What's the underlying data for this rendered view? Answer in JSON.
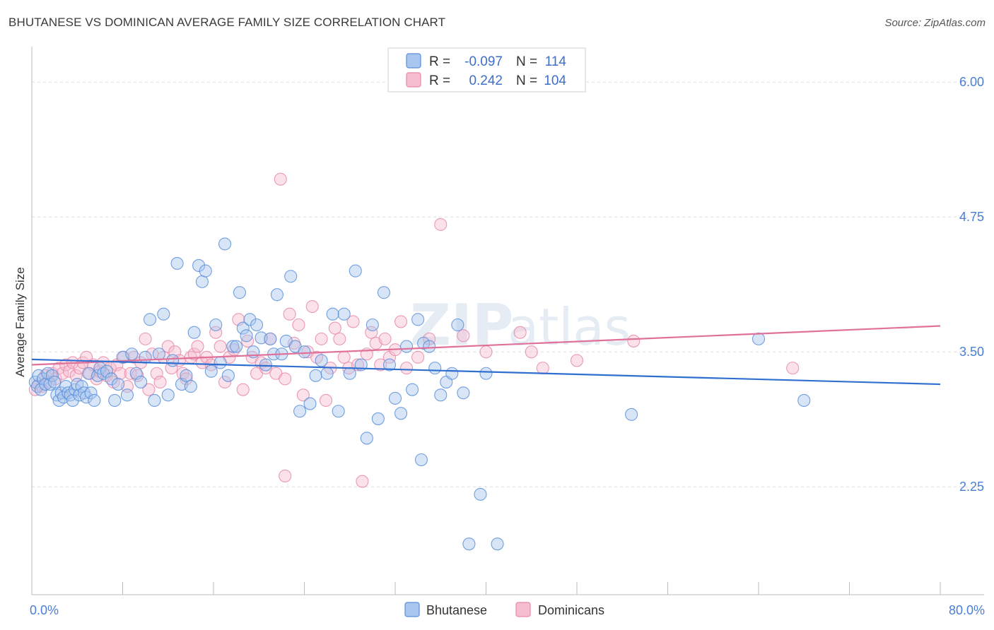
{
  "title": "BHUTANESE VS DOMINICAN AVERAGE FAMILY SIZE CORRELATION CHART",
  "source": "Source: ZipAtlas.com",
  "watermark": {
    "zip": "ZIP",
    "atlas": "atlas"
  },
  "legend": {
    "rows": [
      {
        "r_label": "R =",
        "r_value": "-0.097",
        "n_label": "N =",
        "n_value": "114"
      },
      {
        "r_label": "R =",
        "r_value": "0.242",
        "n_label": "N =",
        "n_value": "104"
      }
    ]
  },
  "colors": {
    "blue": "#5b8fd9",
    "blue_fill": "#a9c6ee",
    "blue_line": "#2f6fd0",
    "pink": "#e789a8",
    "pink_fill": "#f6bcd0",
    "pink_line": "#e0719a",
    "grid": "#dddddd",
    "tick_text": "#4a7fd4"
  },
  "chart_data": {
    "type": "scatter",
    "title": "BHUTANESE VS DOMINICAN AVERAGE FAMILY SIZE CORRELATION CHART",
    "xlabel": "",
    "ylabel": "Average Family Size",
    "xlim": [
      0,
      80
    ],
    "ylim": [
      1.25,
      6.25
    ],
    "x_tick_labels": [
      "0.0%",
      "80.0%"
    ],
    "x_ticks": [
      0,
      80
    ],
    "y_ticks": [
      2.25,
      3.5,
      4.75,
      6.0
    ],
    "y_tick_labels": [
      "2.25",
      "3.50",
      "4.75",
      "6.00"
    ],
    "grid": true,
    "legend_position": "top-center",
    "series": [
      {
        "name": "Bhutanese",
        "r": -0.097,
        "n": 114,
        "trend": {
          "x": [
            0,
            80
          ],
          "y": [
            3.43,
            3.2
          ]
        },
        "points": [
          [
            0.3,
            3.22
          ],
          [
            0.5,
            3.18
          ],
          [
            0.6,
            3.28
          ],
          [
            0.8,
            3.15
          ],
          [
            1.0,
            3.25
          ],
          [
            1.2,
            3.2
          ],
          [
            1.4,
            3.3
          ],
          [
            1.6,
            3.2
          ],
          [
            1.8,
            3.28
          ],
          [
            2.0,
            3.22
          ],
          [
            2.2,
            3.1
          ],
          [
            2.4,
            3.05
          ],
          [
            2.6,
            3.12
          ],
          [
            2.8,
            3.08
          ],
          [
            3.0,
            3.18
          ],
          [
            3.2,
            3.12
          ],
          [
            3.4,
            3.1
          ],
          [
            3.6,
            3.05
          ],
          [
            3.8,
            3.15
          ],
          [
            4.0,
            3.2
          ],
          [
            4.2,
            3.1
          ],
          [
            4.4,
            3.18
          ],
          [
            4.6,
            3.12
          ],
          [
            4.8,
            3.08
          ],
          [
            5.0,
            3.3
          ],
          [
            5.2,
            3.12
          ],
          [
            5.5,
            3.05
          ],
          [
            5.8,
            3.28
          ],
          [
            6.0,
            3.35
          ],
          [
            6.3,
            3.3
          ],
          [
            6.6,
            3.32
          ],
          [
            7.0,
            3.25
          ],
          [
            7.3,
            3.05
          ],
          [
            7.6,
            3.2
          ],
          [
            8.0,
            3.45
          ],
          [
            8.4,
            3.1
          ],
          [
            8.8,
            3.48
          ],
          [
            9.2,
            3.3
          ],
          [
            9.6,
            3.22
          ],
          [
            10.0,
            3.45
          ],
          [
            10.4,
            3.8
          ],
          [
            10.8,
            3.05
          ],
          [
            11.2,
            3.48
          ],
          [
            11.6,
            3.85
          ],
          [
            12.0,
            3.1
          ],
          [
            12.4,
            3.42
          ],
          [
            12.8,
            4.32
          ],
          [
            13.2,
            3.2
          ],
          [
            13.6,
            3.28
          ],
          [
            14.0,
            3.18
          ],
          [
            14.3,
            3.68
          ],
          [
            14.7,
            4.3
          ],
          [
            15.0,
            4.15
          ],
          [
            15.3,
            4.25
          ],
          [
            15.8,
            3.32
          ],
          [
            16.2,
            3.75
          ],
          [
            16.6,
            3.4
          ],
          [
            17.0,
            4.5
          ],
          [
            17.3,
            3.28
          ],
          [
            17.7,
            3.55
          ],
          [
            18.0,
            3.55
          ],
          [
            18.3,
            4.05
          ],
          [
            18.6,
            3.72
          ],
          [
            18.9,
            3.65
          ],
          [
            19.2,
            3.8
          ],
          [
            19.5,
            3.5
          ],
          [
            19.8,
            3.75
          ],
          [
            20.2,
            3.63
          ],
          [
            20.6,
            3.38
          ],
          [
            21.0,
            3.62
          ],
          [
            21.3,
            3.48
          ],
          [
            21.6,
            4.03
          ],
          [
            22.0,
            3.48
          ],
          [
            22.4,
            3.6
          ],
          [
            22.8,
            4.2
          ],
          [
            23.2,
            3.55
          ],
          [
            23.6,
            2.95
          ],
          [
            24.0,
            3.5
          ],
          [
            24.5,
            3.02
          ],
          [
            25.0,
            3.28
          ],
          [
            25.5,
            3.42
          ],
          [
            26.0,
            3.3
          ],
          [
            26.5,
            3.85
          ],
          [
            27.0,
            2.95
          ],
          [
            27.5,
            3.85
          ],
          [
            28.0,
            3.3
          ],
          [
            28.5,
            4.25
          ],
          [
            29.0,
            3.38
          ],
          [
            29.5,
            2.7
          ],
          [
            30.0,
            3.75
          ],
          [
            30.5,
            2.88
          ],
          [
            31.0,
            4.05
          ],
          [
            31.5,
            3.38
          ],
          [
            32.0,
            3.07
          ],
          [
            32.5,
            2.93
          ],
          [
            33.0,
            3.55
          ],
          [
            33.5,
            3.15
          ],
          [
            34.0,
            3.8
          ],
          [
            34.5,
            3.58
          ],
          [
            35.0,
            3.55
          ],
          [
            35.5,
            3.35
          ],
          [
            36.0,
            3.1
          ],
          [
            36.5,
            3.22
          ],
          [
            37.0,
            3.3
          ],
          [
            37.5,
            3.75
          ],
          [
            38.0,
            3.12
          ],
          [
            38.5,
            1.72
          ],
          [
            39.5,
            2.18
          ],
          [
            40.0,
            3.3
          ],
          [
            41.0,
            1.72
          ],
          [
            52.8,
            2.92
          ],
          [
            64.0,
            3.62
          ],
          [
            68.0,
            3.05
          ],
          [
            34.3,
            2.5
          ]
        ]
      },
      {
        "name": "Dominicans",
        "r": 0.242,
        "n": 104,
        "trend": {
          "x": [
            0,
            80
          ],
          "y": [
            3.38,
            3.74
          ]
        },
        "points": [
          [
            0.3,
            3.15
          ],
          [
            0.6,
            3.2
          ],
          [
            0.9,
            3.18
          ],
          [
            1.2,
            3.28
          ],
          [
            1.5,
            3.22
          ],
          [
            1.8,
            3.3
          ],
          [
            2.1,
            3.25
          ],
          [
            2.4,
            3.35
          ],
          [
            2.7,
            3.3
          ],
          [
            3.0,
            3.38
          ],
          [
            3.3,
            3.32
          ],
          [
            3.6,
            3.4
          ],
          [
            3.9,
            3.28
          ],
          [
            4.2,
            3.35
          ],
          [
            4.5,
            3.4
          ],
          [
            4.8,
            3.45
          ],
          [
            5.1,
            3.3
          ],
          [
            5.4,
            3.38
          ],
          [
            5.7,
            3.25
          ],
          [
            6.0,
            3.32
          ],
          [
            6.3,
            3.4
          ],
          [
            6.6,
            3.28
          ],
          [
            6.9,
            3.35
          ],
          [
            7.2,
            3.22
          ],
          [
            7.5,
            3.38
          ],
          [
            7.8,
            3.3
          ],
          [
            8.1,
            3.45
          ],
          [
            8.4,
            3.18
          ],
          [
            8.7,
            3.3
          ],
          [
            9.0,
            3.45
          ],
          [
            9.3,
            3.28
          ],
          [
            9.6,
            3.4
          ],
          [
            10.0,
            3.62
          ],
          [
            10.3,
            3.15
          ],
          [
            10.6,
            3.48
          ],
          [
            11.0,
            3.3
          ],
          [
            11.3,
            3.22
          ],
          [
            11.6,
            3.45
          ],
          [
            12.0,
            3.55
          ],
          [
            12.3,
            3.35
          ],
          [
            12.6,
            3.5
          ],
          [
            13.0,
            3.42
          ],
          [
            13.3,
            3.3
          ],
          [
            13.6,
            3.25
          ],
          [
            14.0,
            3.45
          ],
          [
            14.3,
            3.48
          ],
          [
            14.6,
            3.55
          ],
          [
            15.0,
            3.4
          ],
          [
            15.4,
            3.45
          ],
          [
            15.8,
            3.38
          ],
          [
            16.2,
            3.68
          ],
          [
            16.6,
            3.55
          ],
          [
            17.0,
            3.22
          ],
          [
            17.4,
            3.45
          ],
          [
            17.8,
            3.52
          ],
          [
            18.2,
            3.8
          ],
          [
            18.6,
            3.15
          ],
          [
            19.0,
            3.6
          ],
          [
            19.4,
            3.45
          ],
          [
            19.8,
            3.3
          ],
          [
            20.2,
            3.4
          ],
          [
            20.6,
            3.35
          ],
          [
            21.0,
            3.62
          ],
          [
            21.5,
            3.3
          ],
          [
            21.9,
            5.1
          ],
          [
            22.3,
            3.25
          ],
          [
            22.7,
            3.85
          ],
          [
            23.1,
            3.58
          ],
          [
            23.5,
            3.75
          ],
          [
            23.9,
            3.1
          ],
          [
            24.3,
            3.5
          ],
          [
            24.7,
            3.92
          ],
          [
            25.1,
            3.45
          ],
          [
            25.5,
            3.62
          ],
          [
            25.9,
            3.05
          ],
          [
            26.3,
            3.35
          ],
          [
            26.7,
            3.72
          ],
          [
            27.1,
            3.62
          ],
          [
            27.5,
            3.45
          ],
          [
            27.9,
            3.35
          ],
          [
            28.3,
            3.78
          ],
          [
            28.7,
            3.38
          ],
          [
            29.1,
            2.3
          ],
          [
            29.5,
            3.48
          ],
          [
            29.9,
            3.68
          ],
          [
            30.3,
            3.58
          ],
          [
            30.7,
            3.38
          ],
          [
            31.1,
            3.62
          ],
          [
            31.5,
            3.45
          ],
          [
            32.0,
            3.52
          ],
          [
            32.5,
            3.78
          ],
          [
            33.0,
            3.35
          ],
          [
            34.0,
            3.45
          ],
          [
            35.0,
            3.62
          ],
          [
            36.0,
            4.68
          ],
          [
            38.0,
            3.65
          ],
          [
            40.0,
            3.5
          ],
          [
            43.0,
            3.68
          ],
          [
            44.0,
            3.5
          ],
          [
            45.0,
            3.35
          ],
          [
            48.0,
            3.42
          ],
          [
            53.0,
            3.6
          ],
          [
            67.0,
            3.35
          ],
          [
            22.3,
            2.35
          ]
        ]
      }
    ]
  },
  "bottom_legend": [
    {
      "label": "Bhutanese"
    },
    {
      "label": "Dominicans"
    }
  ]
}
